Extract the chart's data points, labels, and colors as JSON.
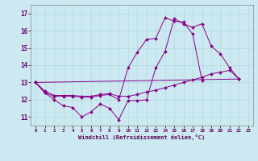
{
  "xlabel": "Windchill (Refroidissement éolien,°C)",
  "background_color": "#cce8f0",
  "line_color": "#880088",
  "xlim": [
    -0.5,
    23.5
  ],
  "ylim": [
    10.5,
    17.5
  ],
  "yticks": [
    11,
    12,
    13,
    14,
    15,
    16,
    17
  ],
  "xticks": [
    0,
    1,
    2,
    3,
    4,
    5,
    6,
    7,
    8,
    9,
    10,
    11,
    12,
    13,
    14,
    15,
    16,
    17,
    18,
    19,
    20,
    21,
    22,
    23
  ],
  "series": [
    {
      "x": [
        0,
        1,
        2,
        3,
        4,
        5,
        6,
        7,
        8,
        9,
        10,
        11,
        12,
        13,
        14,
        15,
        16,
        17,
        18,
        19,
        20,
        21,
        22
      ],
      "y": [
        13.0,
        12.4,
        12.0,
        11.65,
        11.55,
        11.0,
        11.3,
        11.75,
        11.5,
        10.85,
        11.95,
        11.95,
        12.0,
        13.85,
        14.8,
        16.7,
        16.4,
        16.2,
        16.4,
        15.1,
        14.65,
        13.85,
        13.2
      ]
    },
    {
      "x": [
        0,
        1,
        2,
        3,
        4,
        5,
        6,
        7,
        8,
        9,
        10,
        11,
        12,
        13,
        14,
        15,
        16,
        17,
        18
      ],
      "y": [
        13.0,
        12.4,
        12.2,
        12.2,
        12.2,
        12.15,
        12.15,
        12.25,
        12.3,
        12.0,
        13.85,
        14.75,
        15.5,
        15.55,
        16.75,
        16.55,
        16.5,
        15.8,
        13.1
      ]
    },
    {
      "x": [
        0,
        1,
        2,
        3,
        4,
        5,
        6,
        7,
        8,
        9,
        10,
        11,
        12,
        13,
        14,
        15,
        16,
        17,
        18,
        19,
        20,
        21,
        22
      ],
      "y": [
        13.0,
        12.5,
        12.25,
        12.25,
        12.25,
        12.2,
        12.2,
        12.3,
        12.35,
        12.2,
        12.2,
        12.3,
        12.45,
        12.55,
        12.7,
        12.85,
        13.0,
        13.15,
        13.3,
        13.5,
        13.6,
        13.7,
        13.2
      ]
    },
    {
      "x": [
        0,
        22
      ],
      "y": [
        13.0,
        13.2
      ]
    }
  ]
}
